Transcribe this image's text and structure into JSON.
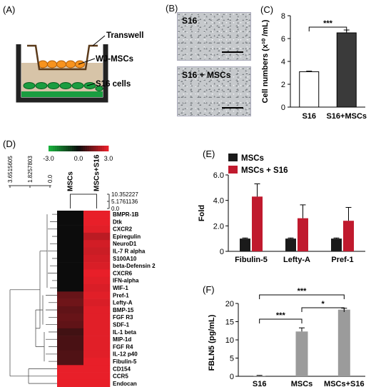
{
  "panels": {
    "a": {
      "label": "(A)",
      "transwell": "Transwell",
      "wj": "WJ-MSCs",
      "s16": "S16 cells"
    },
    "b": {
      "label": "(B)",
      "top_photo": "S16",
      "bottom_photo": "S16 + MSCs"
    },
    "c": {
      "label": "(C)"
    },
    "d": {
      "label": "(D)"
    },
    "e": {
      "label": "(E)"
    },
    "f": {
      "label": "(F)"
    }
  },
  "colors": {
    "orange": "#f7931e",
    "green": "#1a9d40",
    "medium": "#d7c4a8",
    "red": "#c01a2e",
    "dark_bar": "#3a3a3a",
    "grey_bar": "#9b9b9b"
  },
  "chart_data": [
    {
      "panel": "C",
      "type": "bar",
      "categories": [
        "S16",
        "S16+MSCs"
      ],
      "values": [
        3.1,
        6.5
      ],
      "errors": [
        0.05,
        0.25
      ],
      "colors": [
        "#ffffff",
        "#3a3a3a"
      ],
      "ylabel": "Cell numbers (x¹⁰ /mL)",
      "ylim": [
        0,
        8
      ],
      "yticks": [
        "0",
        "2",
        "4",
        "6",
        "8"
      ],
      "significance": [
        {
          "pair": [
            0,
            1
          ],
          "label": "***"
        }
      ]
    },
    {
      "panel": "D",
      "type": "heatmap",
      "columns": [
        "MSCs",
        "MSCs+S16"
      ],
      "rows": [
        "BMPR-1B",
        "Dtk",
        "CXCR2",
        "Epiregulin",
        "NeuroD1",
        "IL-7 R alpha",
        "S100A10",
        "beta-Defensin 2",
        "CXCR6",
        "IFN-alpha",
        "WIF-1",
        "Pref-1",
        "Lefty-A",
        "BMP-15",
        "FGF R3",
        "SDF-1",
        "IL-1 beta",
        "MIP-1d",
        "FGF R4",
        "IL-12 p40",
        "Fibulin-5",
        "CD154",
        "CCR5",
        "Endocan"
      ],
      "values": [
        [
          0.0,
          2.9
        ],
        [
          0.0,
          2.9
        ],
        [
          0.0,
          2.8
        ],
        [
          0.0,
          2.3
        ],
        [
          0.0,
          2.6
        ],
        [
          0.0,
          2.5
        ],
        [
          0.0,
          2.6
        ],
        [
          0.0,
          2.7
        ],
        [
          0.0,
          2.9
        ],
        [
          0.0,
          2.8
        ],
        [
          0.0,
          2.7
        ],
        [
          1.2,
          2.8
        ],
        [
          1.3,
          2.7
        ],
        [
          1.1,
          2.8
        ],
        [
          1.2,
          2.8
        ],
        [
          1.1,
          2.8
        ],
        [
          0.7,
          2.8
        ],
        [
          0.8,
          2.8
        ],
        [
          0.8,
          2.8
        ],
        [
          0.9,
          2.8
        ],
        [
          0.9,
          2.9
        ],
        [
          2.9,
          2.9
        ],
        [
          2.9,
          2.9
        ],
        [
          2.9,
          2.9
        ]
      ],
      "colorbar": {
        "min": -3.0,
        "mid": 0.0,
        "max": 3.0,
        "labels": [
          "-3.0",
          "0.0",
          "3.0"
        ]
      },
      "row_dendrogram_ticks": [
        "3.6515605",
        "1.8257803",
        "0.0"
      ],
      "col_dendrogram_ticks": [
        "10.352227",
        "5.1761136",
        "0.0"
      ]
    },
    {
      "panel": "E",
      "type": "bar",
      "categories": [
        "Fibulin-5",
        "Lefty-A",
        "Pref-1"
      ],
      "series": [
        {
          "name": "MSCs",
          "values": [
            1.0,
            1.0,
            1.0
          ],
          "errors": [
            0.05,
            0.05,
            0.05
          ],
          "color": "#1a1a1a"
        },
        {
          "name": "MSCs + S16",
          "values": [
            4.3,
            2.6,
            2.4
          ],
          "errors": [
            1.0,
            1.05,
            1.05
          ],
          "color": "#c01a2e"
        }
      ],
      "ylabel": "Fold",
      "ylim": [
        0,
        6
      ],
      "yticks": [
        "0",
        "2.0",
        "4.0",
        "6.0"
      ],
      "legend": "top-left"
    },
    {
      "panel": "F",
      "type": "bar",
      "categories": [
        "S16",
        "MSCs",
        "MSCs+S16"
      ],
      "values": [
        0.15,
        12.3,
        18.3
      ],
      "errors": [
        0.1,
        1.0,
        0.4
      ],
      "ylabel": "FBLN5 (pg/mL)",
      "ylim": [
        0,
        20
      ],
      "yticks": [
        "0",
        "5",
        "10",
        "15",
        "20"
      ],
      "significance": [
        {
          "pair": [
            0,
            1
          ],
          "label": "***"
        },
        {
          "pair": [
            1,
            2
          ],
          "label": "*"
        },
        {
          "pair": [
            0,
            2
          ],
          "label": "***"
        }
      ]
    }
  ]
}
